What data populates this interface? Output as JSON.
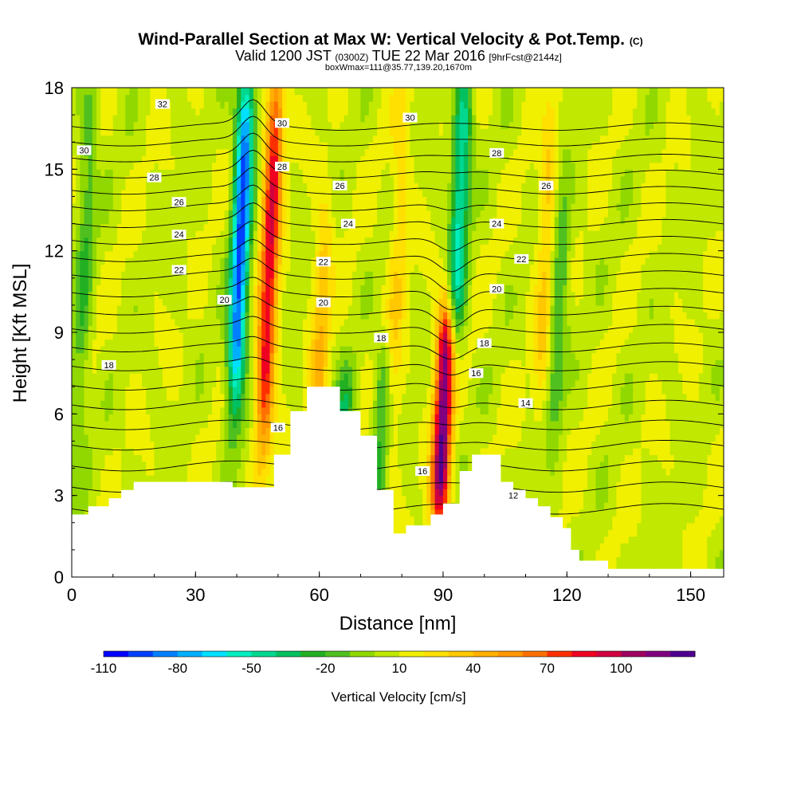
{
  "header": {
    "title": "Wind-Parallel Section at Max W: Vertical Velocity & Pot.Temp.",
    "title_suffix": "(C)",
    "valid_prefix": "Valid 1200 JST",
    "valid_utc": "(0300Z)",
    "valid_main": "TUE 22 Mar 2016",
    "valid_fcst": "[9hrFcst@2144z]",
    "box_info": "boxWmax=111@35.77,139.20,1670m"
  },
  "chart_data": {
    "type": "heatmap",
    "xlabel": "Distance [nm]",
    "ylabel": "Height [Kft MSL]",
    "xlim": [
      0,
      158
    ],
    "ylim": [
      0,
      18
    ],
    "x_ticks": [
      "0",
      "30",
      "60",
      "90",
      "120",
      "150"
    ],
    "y_ticks": [
      "0",
      "3",
      "6",
      "9",
      "12",
      "15",
      "18"
    ],
    "x_tick_values": [
      0,
      30,
      60,
      90,
      120,
      150
    ],
    "y_tick_values": [
      0,
      3,
      6,
      9,
      12,
      15,
      18
    ],
    "colorbar": {
      "label": "Vertical Velocity [cm/s]",
      "levels": [
        -110,
        -100,
        -90,
        -80,
        -70,
        -60,
        -50,
        -40,
        -30,
        -20,
        -10,
        0,
        10,
        20,
        30,
        40,
        50,
        60,
        70,
        80,
        90,
        100,
        110,
        120
      ],
      "colors": [
        "#0000ff",
        "#0040ff",
        "#0080ff",
        "#00b0ff",
        "#00e0ff",
        "#00eec0",
        "#00d890",
        "#00c060",
        "#22b022",
        "#50c020",
        "#90d800",
        "#c0e800",
        "#f0f000",
        "#ffe000",
        "#ffc800",
        "#ffb000",
        "#ff9800",
        "#ff7000",
        "#ff3000",
        "#f00020",
        "#d00040",
        "#a00060",
        "#800080",
        "#500090"
      ],
      "tick_labels": [
        "-110",
        "-80",
        "-50",
        "-20",
        "10",
        "40",
        "70",
        "100"
      ],
      "tick_values": [
        -110,
        -80,
        -50,
        -20,
        10,
        40,
        70,
        100
      ]
    },
    "terrain": [
      [
        0,
        2.3
      ],
      [
        4,
        2.3
      ],
      [
        4,
        2.6
      ],
      [
        9,
        2.6
      ],
      [
        9,
        2.9
      ],
      [
        12,
        2.9
      ],
      [
        12,
        3.2
      ],
      [
        15,
        3.2
      ],
      [
        15,
        3.5
      ],
      [
        39,
        3.5
      ],
      [
        39,
        3.3
      ],
      [
        49,
        3.3
      ],
      [
        49,
        4.5
      ],
      [
        53,
        4.5
      ],
      [
        53,
        6.1
      ],
      [
        57,
        6.1
      ],
      [
        57,
        7.0
      ],
      [
        65,
        7.0
      ],
      [
        65,
        6.1
      ],
      [
        70,
        6.1
      ],
      [
        70,
        5.2
      ],
      [
        74,
        5.2
      ],
      [
        74,
        3.2
      ],
      [
        78,
        3.2
      ],
      [
        78,
        1.6
      ],
      [
        81,
        1.6
      ],
      [
        81,
        1.9
      ],
      [
        87,
        1.9
      ],
      [
        87,
        2.3
      ],
      [
        90,
        2.3
      ],
      [
        90,
        2.7
      ],
      [
        94,
        2.7
      ],
      [
        94,
        3.9
      ],
      [
        97,
        3.9
      ],
      [
        97,
        4.5
      ],
      [
        104,
        4.5
      ],
      [
        104,
        3.5
      ],
      [
        107,
        3.5
      ],
      [
        107,
        3.2
      ],
      [
        110,
        3.2
      ],
      [
        110,
        2.9
      ],
      [
        113,
        2.9
      ],
      [
        113,
        2.6
      ],
      [
        116,
        2.6
      ],
      [
        116,
        2.2
      ],
      [
        119,
        2.2
      ],
      [
        119,
        1.8
      ],
      [
        121,
        1.8
      ],
      [
        121,
        1.0
      ],
      [
        123,
        1.0
      ],
      [
        123,
        0.6
      ],
      [
        130,
        0.6
      ],
      [
        130,
        0.3
      ],
      [
        158,
        0.3
      ]
    ],
    "updraft_cores": [
      {
        "x": 48,
        "z_bottom": 5.5,
        "z_top": 18,
        "w_max": 80
      },
      {
        "x": 90,
        "z_bottom": 2.5,
        "z_top": 9.5,
        "w_max": 111
      },
      {
        "x": 60,
        "z_bottom": 3,
        "z_top": 13,
        "w_max": 30
      },
      {
        "x": 115,
        "z_bottom": 7,
        "z_top": 17,
        "w_max": 25
      },
      {
        "x": 79,
        "z_bottom": 5,
        "z_top": 18,
        "w_max": 20
      }
    ],
    "downdraft_cores": [
      {
        "x": 41,
        "z_bottom": 7,
        "z_top": 18,
        "w_min": -100
      },
      {
        "x": 94,
        "z_bottom": 9,
        "z_top": 18,
        "w_min": -60
      },
      {
        "x": 66,
        "z_bottom": 3,
        "z_top": 7,
        "w_min": -35
      },
      {
        "x": 75,
        "z_bottom": 3,
        "z_top": 8,
        "w_min": -30
      },
      {
        "x": 118,
        "z_bottom": 6,
        "z_top": 14,
        "w_min": -30
      },
      {
        "x": 3,
        "z_bottom": 5,
        "z_top": 18,
        "w_min": -25
      }
    ],
    "theta_contours": {
      "levels": [
        12,
        13,
        14,
        15,
        16,
        17,
        18,
        19,
        20,
        21,
        22,
        23,
        24,
        25,
        26,
        27,
        28,
        29,
        30,
        31,
        32,
        33
      ],
      "labels": [
        {
          "text": "32",
          "x": 22,
          "z": 17.4
        },
        {
          "text": "30",
          "x": 3,
          "z": 15.7
        },
        {
          "text": "30",
          "x": 51,
          "z": 16.7
        },
        {
          "text": "30",
          "x": 82,
          "z": 16.9
        },
        {
          "text": "28",
          "x": 20,
          "z": 14.7
        },
        {
          "text": "28",
          "x": 51,
          "z": 15.1
        },
        {
          "text": "28",
          "x": 103,
          "z": 15.6
        },
        {
          "text": "26",
          "x": 26,
          "z": 13.8
        },
        {
          "text": "26",
          "x": 65,
          "z": 14.4
        },
        {
          "text": "26",
          "x": 115,
          "z": 14.4
        },
        {
          "text": "24",
          "x": 26,
          "z": 12.6
        },
        {
          "text": "24",
          "x": 67,
          "z": 13.0
        },
        {
          "text": "24",
          "x": 103,
          "z": 13.0
        },
        {
          "text": "22",
          "x": 26,
          "z": 11.3
        },
        {
          "text": "22",
          "x": 61,
          "z": 11.6
        },
        {
          "text": "22",
          "x": 109,
          "z": 11.7
        },
        {
          "text": "20",
          "x": 37,
          "z": 10.2
        },
        {
          "text": "20",
          "x": 61,
          "z": 10.1
        },
        {
          "text": "20",
          "x": 103,
          "z": 10.6
        },
        {
          "text": "18",
          "x": 9,
          "z": 7.8
        },
        {
          "text": "18",
          "x": 75,
          "z": 8.8
        },
        {
          "text": "18",
          "x": 100,
          "z": 8.6
        },
        {
          "text": "16",
          "x": 50,
          "z": 5.5
        },
        {
          "text": "16",
          "x": 85,
          "z": 3.9
        },
        {
          "text": "16",
          "x": 98,
          "z": 7.5
        },
        {
          "text": "14",
          "x": 110,
          "z": 6.4
        },
        {
          "text": "12",
          "x": 107,
          "z": 3.0
        }
      ]
    }
  }
}
